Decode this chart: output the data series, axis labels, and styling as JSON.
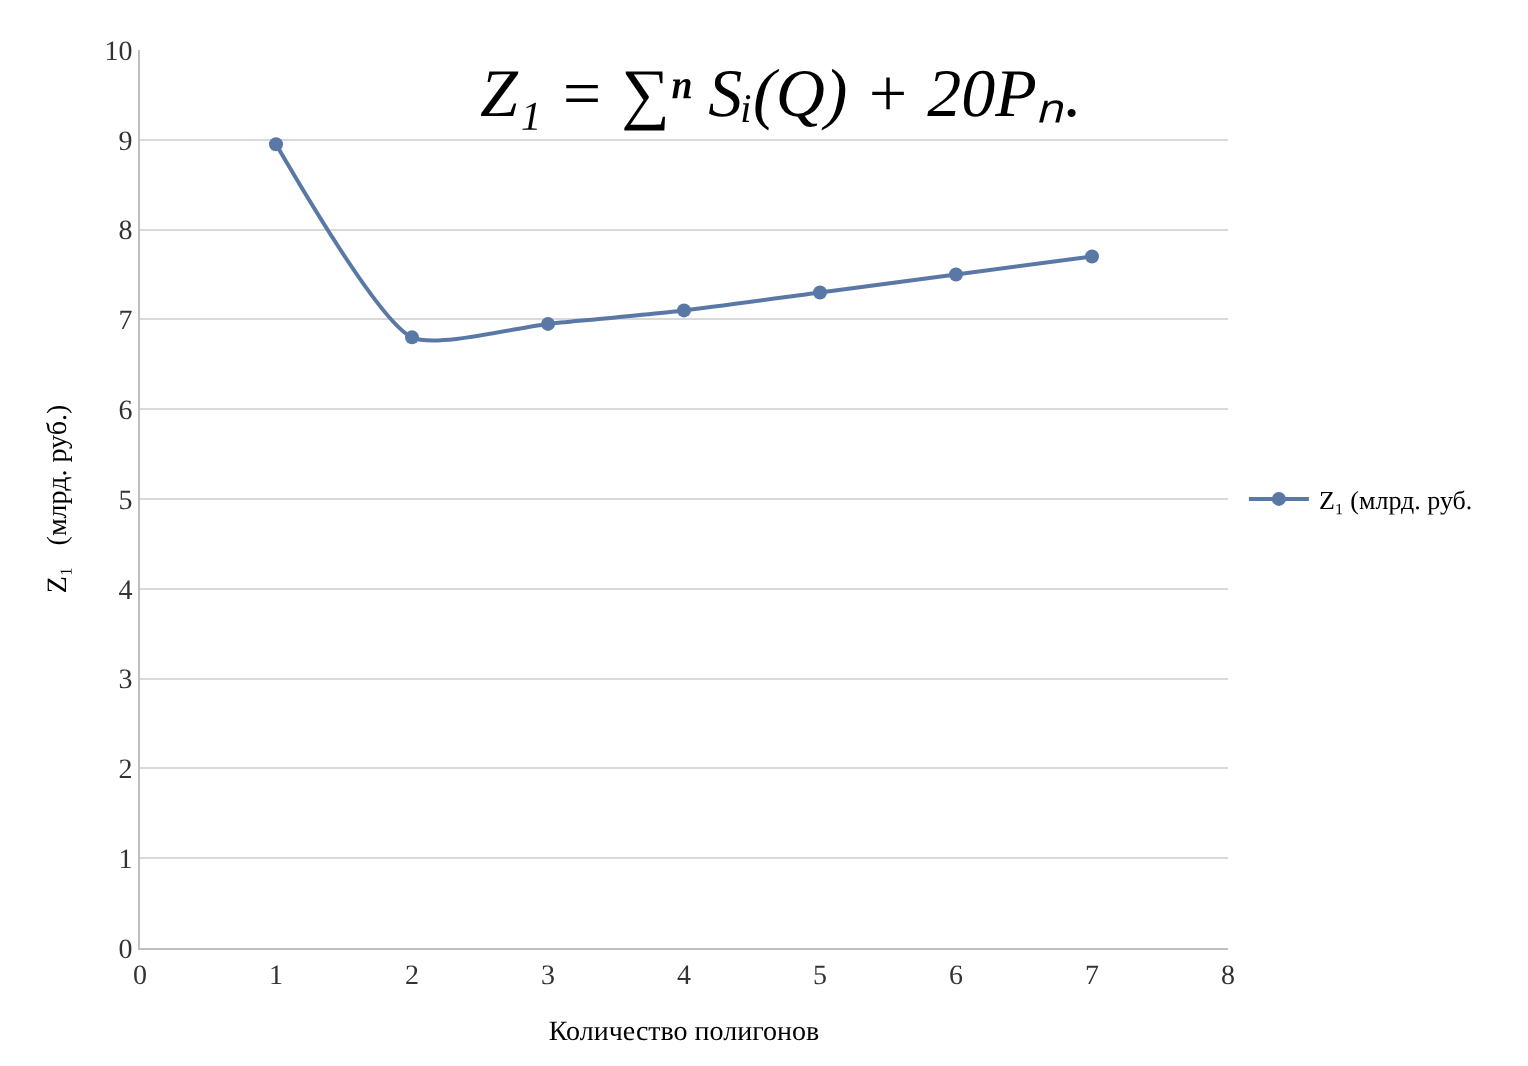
{
  "chart_data": {
    "type": "line",
    "x": [
      1,
      2,
      3,
      4,
      5,
      6,
      7
    ],
    "series": [
      {
        "name": "Z₁ (млрд. руб.",
        "color": "#5a78a6",
        "values": [
          8.95,
          6.8,
          6.95,
          7.1,
          7.3,
          7.5,
          7.7
        ]
      }
    ],
    "xlabel": "Количество полигонов",
    "ylabel": "Z₁   (млрд. руб.)",
    "annotations": [
      "Z₁ = ∑ⁿ Sᵢ(Q) + 20Pₙ."
    ],
    "xlim": [
      0,
      8
    ],
    "xticks": [
      0,
      1,
      2,
      3,
      4,
      5,
      6,
      7,
      8
    ],
    "ylim": [
      0,
      10
    ],
    "yticks": [
      0,
      1,
      2,
      3,
      4,
      5,
      6,
      7,
      8,
      9,
      10
    ],
    "grid": "y",
    "legend": "right",
    "marker": "circle",
    "line_style": "solid"
  }
}
